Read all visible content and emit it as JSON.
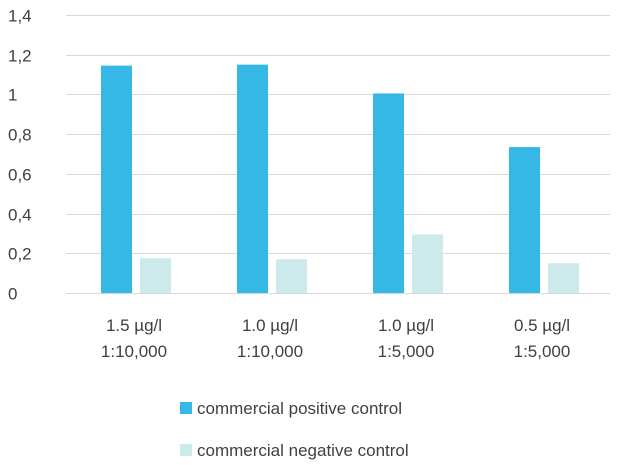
{
  "chart_data": {
    "type": "bar",
    "categories": [
      [
        "1.5 µg/l",
        "1:10,000"
      ],
      [
        "1.0 µg/l",
        "1:10,000"
      ],
      [
        "1.0 µg/l",
        "1:5,000"
      ],
      [
        "0.5 µg/l",
        "1:5,000"
      ]
    ],
    "series": [
      {
        "name": "commercial positive control",
        "color": "#35B8E6",
        "values": [
          1.145,
          1.15,
          1.005,
          0.735
        ]
      },
      {
        "name": "commercial negative control",
        "color": "#CCE9EC",
        "values": [
          0.175,
          0.17,
          0.295,
          0.15
        ]
      }
    ],
    "y_ticks": [
      "0",
      "0,2",
      "0,4",
      "0,6",
      "0,8",
      "1",
      "1,2",
      "1,4"
    ],
    "ylim": [
      0,
      1.4
    ],
    "grid": true,
    "legend_position": "bottom",
    "gridline_color": "#D9D9D9"
  }
}
